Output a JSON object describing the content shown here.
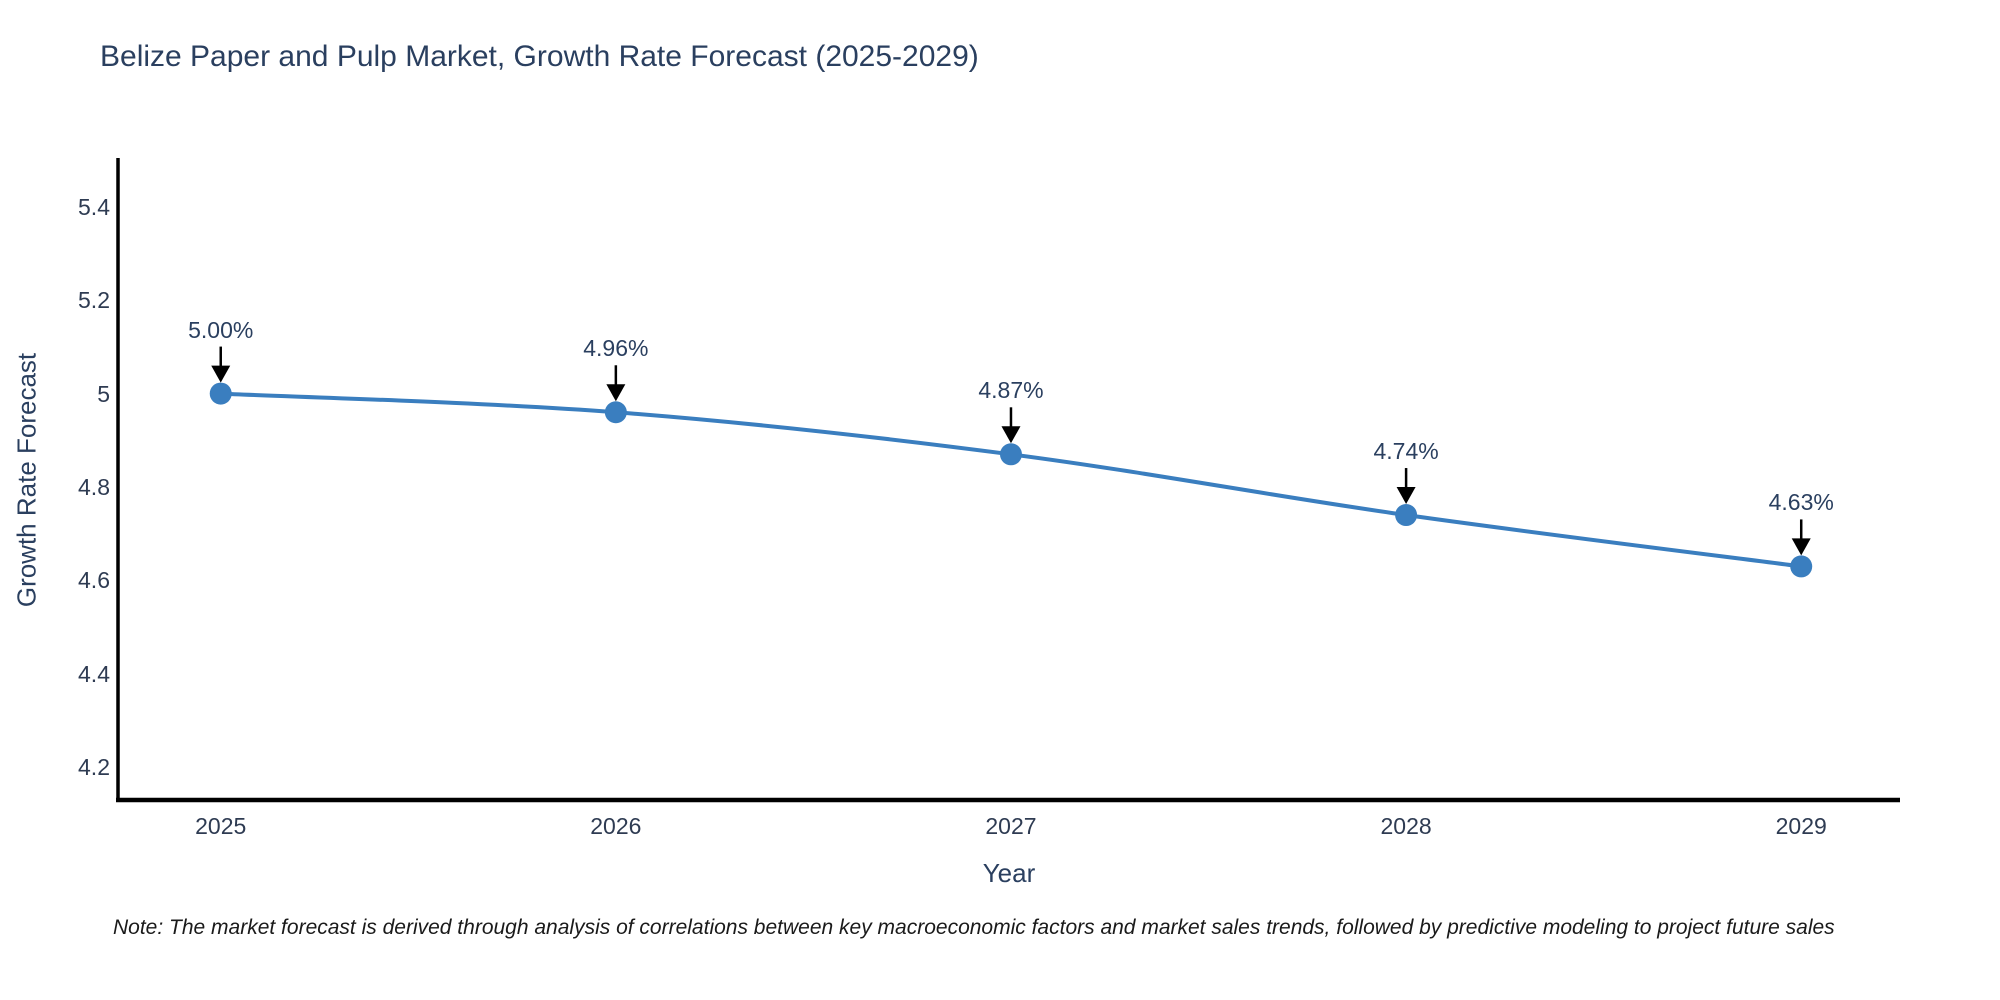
{
  "title": "Belize Paper and Pulp Market, Growth Rate Forecast (2025-2029)",
  "note": "Note: The market forecast is derived through analysis of correlations between key macroeconomic factors and market sales trends, followed by predictive modeling to project future sales",
  "chart_data": {
    "type": "line",
    "x": [
      2025,
      2026,
      2027,
      2028,
      2029
    ],
    "values": [
      5.0,
      4.96,
      4.87,
      4.74,
      4.63
    ],
    "point_labels": [
      "5.00%",
      "4.96%",
      "4.87%",
      "4.74%",
      "4.63%"
    ],
    "title": "Belize Paper and Pulp Market, Growth Rate Forecast (2025-2029)",
    "xlabel": "Year",
    "ylabel": "Growth Rate Forecast",
    "xtick_labels": [
      "2025",
      "2026",
      "2027",
      "2028",
      "2029"
    ],
    "yticks": [
      4.2,
      4.4,
      4.6,
      4.8,
      5,
      5.2,
      5.4
    ],
    "ytick_labels": [
      "4.2",
      "4.4",
      "4.6",
      "4.8",
      "5",
      "5.2",
      "5.4"
    ],
    "xlim": [
      2024.74,
      2029.25
    ],
    "ylim": [
      4.13,
      5.5
    ],
    "grid": false,
    "legend": false,
    "line_shape": "spline",
    "colors": {
      "line": "#3a7ebf",
      "marker": "#3a7ebf",
      "annotation_arrow": "#000000",
      "axis": "#000000",
      "tick_text": "#2e3b52",
      "text": "#2a3f5f",
      "note_text": "#1a1a1a",
      "background": "#ffffff"
    }
  }
}
